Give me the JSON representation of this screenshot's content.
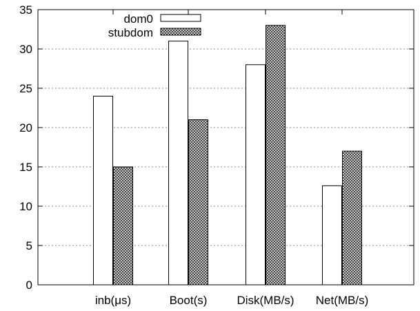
{
  "chart_data": {
    "type": "bar",
    "categories": [
      "inb(μs)",
      "Boot(s)",
      "Disk(MB/s)",
      "Net(MB/s)"
    ],
    "series": [
      {
        "name": "dom0",
        "values": [
          24,
          31,
          28,
          12.6
        ],
        "fill": "#ffffff",
        "pattern": "none"
      },
      {
        "name": "stubdom",
        "values": [
          15,
          21,
          33,
          17
        ],
        "fill": "#9a9a9a",
        "pattern": "crosshatch"
      }
    ],
    "title": "",
    "xlabel": "",
    "ylabel": "",
    "ylim": [
      0,
      35
    ],
    "yticks": [
      0,
      5,
      10,
      15,
      20,
      25,
      30,
      35
    ],
    "grid": "horizontal-dashed",
    "legend": "top-left"
  },
  "colors": {
    "axis": "#000000",
    "grid": "#888888",
    "bar_outline": "#000000"
  }
}
